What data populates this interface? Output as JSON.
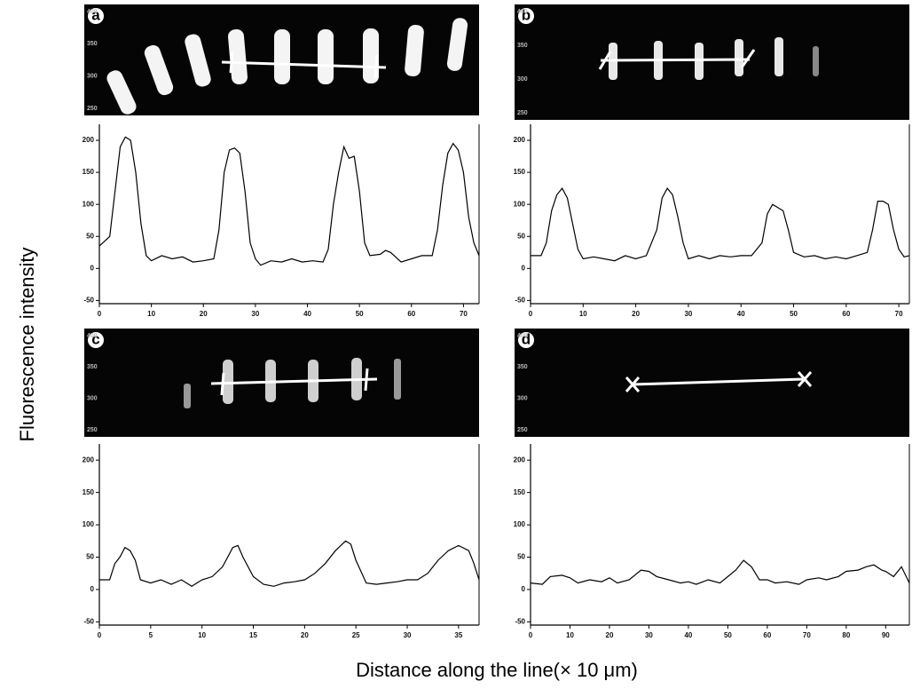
{
  "figure": {
    "ylabel": "Fluorescence intensity",
    "xlabel": "Distance along the line(× 10 μm)"
  },
  "chart_data": [
    {
      "type": "line",
      "label": "a",
      "image_yticks": [
        "400",
        "350",
        "300",
        "250"
      ],
      "color": "#000000",
      "x": [
        0,
        2,
        3,
        4,
        5,
        6,
        7,
        8,
        9,
        10,
        12,
        14,
        16,
        18,
        20,
        22,
        23,
        24,
        25,
        26,
        27,
        28,
        29,
        30,
        31,
        33,
        35,
        37,
        39,
        41,
        43,
        44,
        45,
        46,
        47,
        48,
        49,
        50,
        51,
        52,
        54,
        55,
        56,
        58,
        60,
        62,
        64,
        65,
        66,
        67,
        68,
        69,
        70,
        71,
        72,
        73
      ],
      "values": [
        35,
        50,
        120,
        190,
        205,
        200,
        150,
        70,
        20,
        12,
        20,
        15,
        18,
        10,
        12,
        15,
        60,
        150,
        185,
        188,
        180,
        120,
        40,
        15,
        5,
        12,
        10,
        15,
        10,
        12,
        10,
        30,
        100,
        150,
        190,
        172,
        175,
        120,
        40,
        20,
        22,
        28,
        25,
        10,
        15,
        20,
        20,
        60,
        130,
        180,
        195,
        185,
        150,
        80,
        40,
        20
      ],
      "xlim": [
        0,
        73
      ],
      "xticks": [
        0,
        10,
        20,
        30,
        40,
        50,
        60,
        70
      ],
      "ylim": [
        -55,
        225
      ],
      "yticks": [
        -50,
        0,
        50,
        100,
        150,
        200
      ]
    },
    {
      "type": "line",
      "label": "b",
      "image_yticks": [
        "400",
        "350",
        "300",
        "250"
      ],
      "color": "#000000",
      "x": [
        0,
        2,
        3,
        4,
        5,
        6,
        7,
        8,
        9,
        10,
        12,
        14,
        16,
        18,
        20,
        22,
        24,
        25,
        26,
        27,
        28,
        29,
        30,
        32,
        34,
        36,
        38,
        40,
        42,
        44,
        45,
        46,
        47,
        48,
        49,
        50,
        52,
        54,
        56,
        58,
        60,
        62,
        64,
        65,
        66,
        67,
        68,
        69,
        70,
        71,
        72
      ],
      "values": [
        20,
        20,
        40,
        90,
        115,
        125,
        110,
        70,
        30,
        15,
        18,
        15,
        12,
        20,
        15,
        20,
        60,
        110,
        125,
        115,
        80,
        40,
        15,
        20,
        15,
        20,
        18,
        20,
        20,
        40,
        85,
        100,
        95,
        90,
        60,
        25,
        18,
        20,
        15,
        18,
        15,
        20,
        25,
        60,
        105,
        105,
        100,
        60,
        30,
        18,
        20
      ],
      "xlim": [
        0,
        72
      ],
      "xticks": [
        0,
        10,
        20,
        30,
        40,
        50,
        60,
        70
      ],
      "ylim": [
        -55,
        225
      ],
      "yticks": [
        -50,
        0,
        50,
        100,
        150,
        200
      ]
    },
    {
      "type": "line",
      "label": "c",
      "image_yticks": [
        "400",
        "350",
        "300",
        "250"
      ],
      "color": "#000000",
      "x": [
        0,
        1,
        1.5,
        2,
        2.5,
        3,
        3.5,
        4,
        5,
        6,
        7,
        8,
        9,
        10,
        11,
        12,
        13,
        13.5,
        14,
        15,
        16,
        17,
        18,
        19,
        20,
        21,
        22,
        23,
        24,
        24.5,
        25,
        26,
        27,
        28,
        29,
        30,
        31,
        32,
        33,
        34,
        35,
        36,
        36.5,
        37
      ],
      "values": [
        15,
        15,
        40,
        50,
        65,
        60,
        45,
        15,
        10,
        15,
        8,
        15,
        5,
        15,
        20,
        35,
        65,
        68,
        50,
        20,
        8,
        5,
        10,
        12,
        15,
        25,
        40,
        60,
        75,
        70,
        45,
        10,
        8,
        10,
        12,
        15,
        15,
        25,
        45,
        60,
        68,
        60,
        40,
        15
      ],
      "xlim": [
        0,
        37
      ],
      "xticks": [
        0,
        5,
        10,
        15,
        20,
        25,
        30,
        35
      ],
      "ylim": [
        -55,
        225
      ],
      "yticks": [
        -50,
        0,
        50,
        100,
        150,
        200
      ]
    },
    {
      "type": "line",
      "label": "d",
      "image_yticks": [
        "400",
        "350",
        "300",
        "250"
      ],
      "color": "#000000",
      "x": [
        0,
        3,
        5,
        8,
        10,
        12,
        15,
        18,
        20,
        22,
        25,
        28,
        30,
        32,
        35,
        38,
        40,
        42,
        45,
        48,
        50,
        52,
        54,
        56,
        58,
        60,
        62,
        65,
        68,
        70,
        73,
        75,
        78,
        80,
        83,
        85,
        87,
        89,
        90,
        92,
        94,
        96
      ],
      "values": [
        10,
        8,
        20,
        22,
        18,
        10,
        15,
        12,
        18,
        10,
        15,
        30,
        28,
        20,
        15,
        10,
        12,
        8,
        15,
        10,
        20,
        30,
        45,
        35,
        15,
        15,
        10,
        12,
        8,
        15,
        18,
        15,
        20,
        28,
        30,
        35,
        38,
        30,
        28,
        20,
        35,
        10
      ],
      "xlim": [
        0,
        96
      ],
      "xticks": [
        0,
        10,
        20,
        30,
        40,
        50,
        60,
        70,
        80,
        90
      ],
      "ylim": [
        -55,
        225
      ],
      "yticks": [
        -50,
        0,
        50,
        100,
        150,
        200
      ]
    }
  ]
}
